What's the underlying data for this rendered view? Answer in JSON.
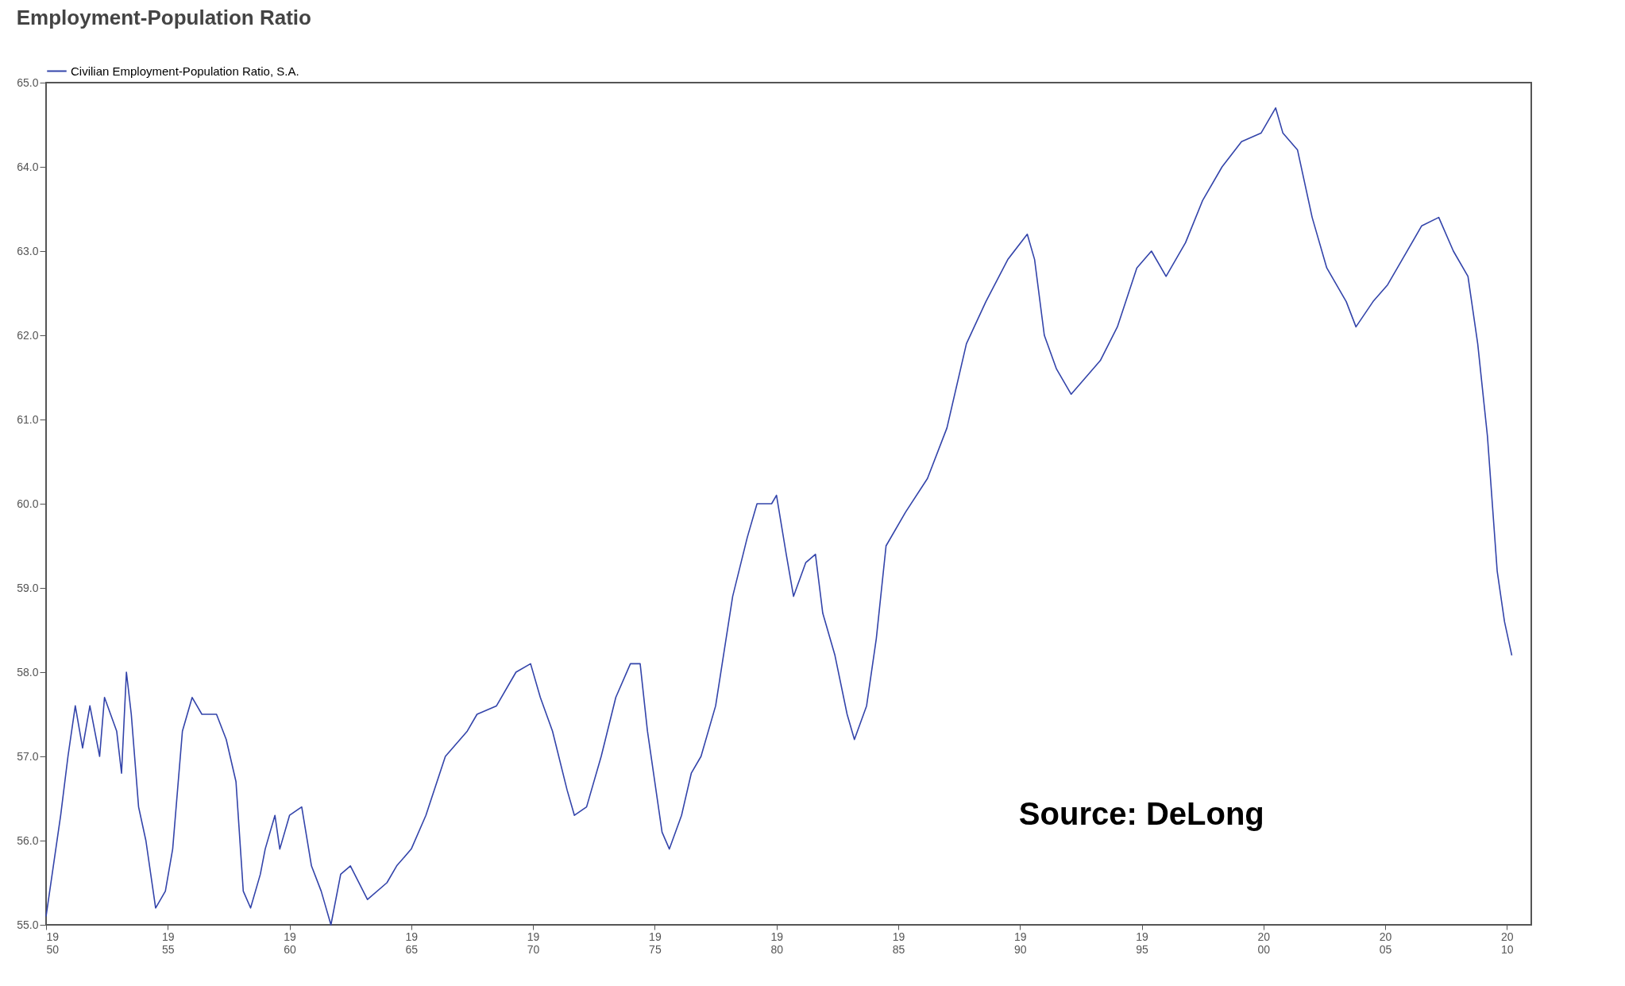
{
  "chart_data": {
    "type": "line",
    "title": "Employment-Population Ratio",
    "annotations": [
      "Source: DeLong"
    ],
    "xlim": [
      1950,
      2011
    ],
    "ylim": [
      55,
      65
    ],
    "xticks": [
      1950,
      1955,
      1960,
      1965,
      1970,
      1975,
      1980,
      1985,
      1990,
      1995,
      2000,
      2005,
      2010
    ],
    "yticks": [
      {
        "value": 55,
        "label": "55.0"
      },
      {
        "value": 56,
        "label": "56.0"
      },
      {
        "value": 57,
        "label": "57.0"
      },
      {
        "value": 58,
        "label": "58.0"
      },
      {
        "value": 59,
        "label": "59.0"
      },
      {
        "value": 60,
        "label": "60.0"
      },
      {
        "value": 61,
        "label": "61.0"
      },
      {
        "value": 62,
        "label": "62.0"
      },
      {
        "value": 63,
        "label": "63.0"
      },
      {
        "value": 64,
        "label": "64.0"
      },
      {
        "value": 65,
        "label": "65.0"
      }
    ],
    "grid": false,
    "legend": "top left",
    "line_style": "solid",
    "marker": "none",
    "series": [
      {
        "name": "Civilian Employment-Population Ratio, S.A.",
        "color": "#3344aa",
        "x": [
          1950.0,
          1950.6,
          1950.9,
          1951.2,
          1951.5,
          1951.8,
          1952.2,
          1952.4,
          1952.9,
          1953.1,
          1953.3,
          1953.5,
          1953.8,
          1954.1,
          1954.5,
          1954.9,
          1955.2,
          1955.6,
          1956.0,
          1956.4,
          1957.0,
          1957.4,
          1957.8,
          1958.1,
          1958.4,
          1958.8,
          1959.0,
          1959.4,
          1959.6,
          1960.0,
          1960.5,
          1960.9,
          1961.3,
          1961.7,
          1962.1,
          1962.5,
          1963.2,
          1964.0,
          1964.4,
          1965.0,
          1965.6,
          1966.4,
          1967.3,
          1967.7,
          1968.5,
          1969.3,
          1969.9,
          1970.3,
          1970.8,
          1971.4,
          1971.7,
          1972.2,
          1972.8,
          1973.4,
          1974.0,
          1974.4,
          1974.7,
          1975.3,
          1975.6,
          1976.1,
          1976.5,
          1976.9,
          1977.5,
          1978.2,
          1978.8,
          1979.2,
          1979.8,
          1980.0,
          1980.4,
          1980.7,
          1981.2,
          1981.6,
          1981.9,
          1982.4,
          1982.9,
          1983.2,
          1983.7,
          1984.1,
          1984.5,
          1985.3,
          1986.2,
          1987.0,
          1987.8,
          1988.6,
          1989.5,
          1990.3,
          1990.6,
          1991.0,
          1991.5,
          1992.1,
          1992.7,
          1993.3,
          1994.0,
          1994.8,
          1995.4,
          1996.0,
          1996.8,
          1997.5,
          1998.3,
          1999.1,
          1999.9,
          2000.5,
          2000.8,
          2001.4,
          2002.0,
          2002.6,
          2003.4,
          2003.8,
          2004.5,
          2005.1,
          2005.7,
          2006.5,
          2007.2,
          2007.8,
          2008.4,
          2008.8,
          2009.2,
          2009.6,
          2009.9,
          2010.2
        ],
        "values": [
          55.1,
          56.3,
          57.0,
          57.6,
          57.1,
          57.6,
          57.0,
          57.7,
          57.3,
          56.8,
          58.0,
          57.5,
          56.4,
          56.0,
          55.2,
          55.4,
          55.9,
          57.3,
          57.7,
          57.5,
          57.5,
          57.2,
          56.7,
          55.4,
          55.2,
          55.6,
          55.9,
          56.3,
          55.9,
          56.3,
          56.4,
          55.7,
          55.4,
          55.0,
          55.6,
          55.7,
          55.3,
          55.5,
          55.7,
          55.9,
          56.3,
          57.0,
          57.3,
          57.5,
          57.6,
          58.0,
          58.1,
          57.7,
          57.3,
          56.6,
          56.3,
          56.4,
          57.0,
          57.7,
          58.1,
          58.1,
          57.3,
          56.1,
          55.9,
          56.3,
          56.8,
          57.0,
          57.6,
          58.9,
          59.6,
          60.0,
          60.0,
          60.1,
          59.4,
          58.9,
          59.3,
          59.4,
          58.7,
          58.2,
          57.5,
          57.2,
          57.6,
          58.4,
          59.5,
          59.9,
          60.3,
          60.9,
          61.9,
          62.4,
          62.9,
          63.2,
          62.9,
          62.0,
          61.6,
          61.3,
          61.5,
          61.7,
          62.1,
          62.8,
          63.0,
          62.7,
          63.1,
          63.6,
          64.0,
          64.3,
          64.4,
          64.7,
          64.4,
          64.2,
          63.4,
          62.8,
          62.4,
          62.1,
          62.4,
          62.6,
          62.9,
          63.3,
          63.4,
          63.0,
          62.7,
          61.9,
          60.8,
          59.2,
          58.6,
          58.2
        ]
      }
    ]
  }
}
